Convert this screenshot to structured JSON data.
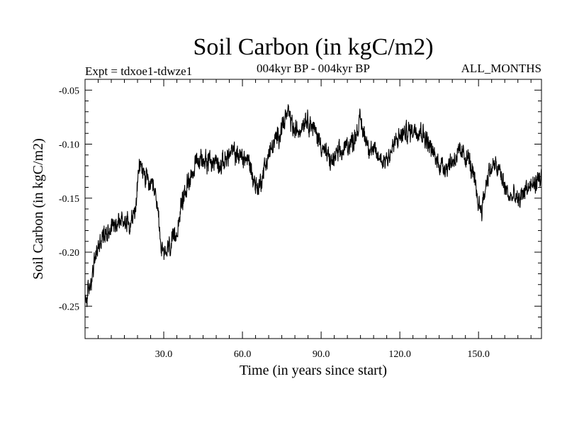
{
  "chart_data": {
    "type": "line",
    "title": "Soil Carbon (in kgC/m2)",
    "experiment": "Expt = tdxoe1-tdwze1",
    "period": "004kyr BP - 004kyr BP",
    "months": "ALL_MONTHS",
    "xlabel": "Time (in years since start)",
    "ylabel": "Soil Carbon (in kgC/m2)",
    "xlim": [
      0,
      174
    ],
    "ylim": [
      -0.28,
      -0.04
    ],
    "x_ticks": [
      30,
      60,
      90,
      120,
      150
    ],
    "x_tick_labels": [
      "30.0",
      "60.0",
      "90.0",
      "120.0",
      "150.0"
    ],
    "y_ticks": [
      -0.05,
      -0.1,
      -0.15,
      -0.2,
      -0.25
    ],
    "y_tick_labels": [
      "-0.05",
      "-0.10",
      "-0.15",
      "-0.20",
      "-0.25"
    ],
    "line_color": "#000000",
    "noise_amplitude": 0.008,
    "samples_per_year": 12,
    "series": [
      {
        "name": "Soil Carbon",
        "x": [
          0,
          1,
          2,
          4,
          5,
          7,
          10,
          12,
          15,
          17,
          19,
          20,
          21,
          23,
          26,
          27,
          28,
          29,
          30,
          31,
          32,
          34,
          35,
          36,
          38,
          40,
          42,
          44,
          46,
          48,
          50,
          52,
          54,
          56,
          58,
          60,
          62,
          63,
          64,
          65,
          66,
          67,
          68,
          70,
          72,
          74,
          76,
          77,
          78,
          80,
          82,
          84,
          86,
          88,
          90,
          92,
          94,
          96,
          98,
          100,
          102,
          104,
          105,
          106,
          108,
          110,
          112,
          114,
          116,
          118,
          120,
          122,
          124,
          126,
          128,
          130,
          132,
          134,
          136,
          138,
          140,
          142,
          144,
          146,
          148,
          150,
          151,
          152,
          153,
          154,
          156,
          158,
          160,
          162,
          164,
          165,
          166,
          168,
          170,
          172,
          174
        ],
        "y": [
          -0.245,
          -0.24,
          -0.23,
          -0.205,
          -0.195,
          -0.185,
          -0.175,
          -0.172,
          -0.17,
          -0.172,
          -0.165,
          -0.138,
          -0.118,
          -0.13,
          -0.145,
          -0.15,
          -0.165,
          -0.195,
          -0.205,
          -0.2,
          -0.195,
          -0.19,
          -0.18,
          -0.165,
          -0.145,
          -0.13,
          -0.12,
          -0.115,
          -0.113,
          -0.118,
          -0.115,
          -0.12,
          -0.112,
          -0.108,
          -0.11,
          -0.112,
          -0.115,
          -0.12,
          -0.13,
          -0.138,
          -0.14,
          -0.135,
          -0.125,
          -0.11,
          -0.1,
          -0.09,
          -0.078,
          -0.073,
          -0.075,
          -0.09,
          -0.085,
          -0.075,
          -0.08,
          -0.09,
          -0.1,
          -0.11,
          -0.117,
          -0.11,
          -0.108,
          -0.1,
          -0.098,
          -0.085,
          -0.078,
          -0.088,
          -0.1,
          -0.108,
          -0.112,
          -0.115,
          -0.11,
          -0.1,
          -0.093,
          -0.09,
          -0.088,
          -0.085,
          -0.087,
          -0.095,
          -0.105,
          -0.115,
          -0.12,
          -0.12,
          -0.115,
          -0.11,
          -0.11,
          -0.112,
          -0.13,
          -0.155,
          -0.16,
          -0.15,
          -0.135,
          -0.125,
          -0.12,
          -0.125,
          -0.14,
          -0.15,
          -0.148,
          -0.155,
          -0.15,
          -0.14,
          -0.14,
          -0.135,
          -0.13
        ]
      }
    ]
  }
}
